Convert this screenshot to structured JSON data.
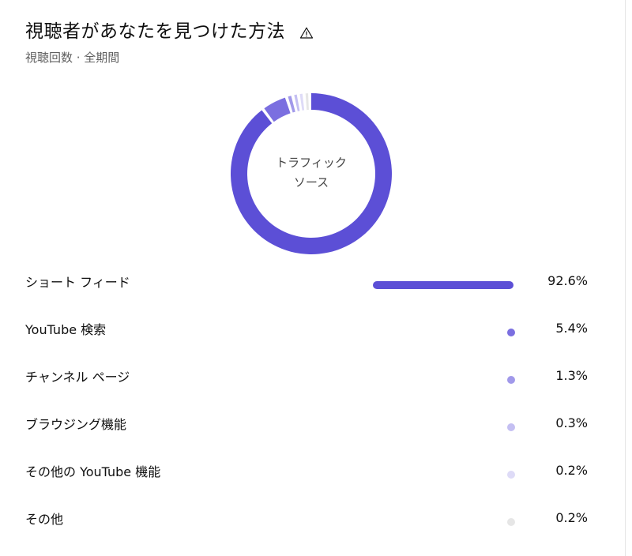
{
  "header": {
    "title": "視聴者があなたを見つけた方法",
    "subtitle": "視聴回数 · 全期間"
  },
  "icons": {
    "warning": "warning-triangle-icon"
  },
  "chart_data": {
    "type": "pie",
    "center_label": "トラフィック ソース",
    "series": [
      {
        "name": "ショート フィード",
        "value": 92.6,
        "label": "92.6%",
        "color": "#5c4fd6"
      },
      {
        "name": "YouTube 検索",
        "value": 5.4,
        "label": "5.4%",
        "color": "#7b6fe0"
      },
      {
        "name": "チャンネル ページ",
        "value": 1.3,
        "label": "1.3%",
        "color": "#a199ea"
      },
      {
        "name": "ブラウジング機能",
        "value": 0.3,
        "label": "0.3%",
        "color": "#c4bff2"
      },
      {
        "name": "その他の YouTube 機能",
        "value": 0.2,
        "label": "0.2%",
        "color": "#dedbf7"
      },
      {
        "name": "その他",
        "value": 0.2,
        "label": "0.2%",
        "color": "#e6e6e6"
      }
    ]
  }
}
